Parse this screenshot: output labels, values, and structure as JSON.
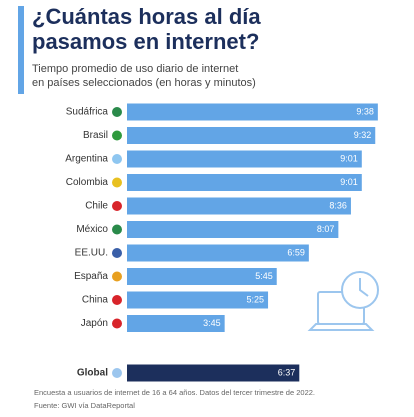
{
  "chart_data": {
    "type": "bar",
    "title": [
      "¿Cuántas horas al día",
      "pasamos en internet?"
    ],
    "subtitle": [
      "Tiempo promedio de uso diario de internet",
      "en países seleccionados (en horas y minutos)"
    ],
    "categories": [
      "Sudáfrica",
      "Brasil",
      "Argentina",
      "Colombia",
      "Chile",
      "México",
      "EE.UU.",
      "España",
      "China",
      "Japón"
    ],
    "values": [
      578,
      572,
      541,
      541,
      516,
      487,
      419,
      345,
      325,
      225
    ],
    "value_labels": [
      "9:38",
      "9:32",
      "9:01",
      "9:01",
      "8:36",
      "8:07",
      "6:59",
      "5:45",
      "5:25",
      "3:45"
    ],
    "color": "#62a5e6",
    "highlight": {
      "category": "Global",
      "value": 397,
      "value_label": "6:37",
      "color": "#1c2f5c"
    },
    "notes": [
      "Encuesta a usuarios de internet de 16 a 64 años. Datos del tercer trimestre de 2022.",
      "Fuente: GWI vía DataReportal"
    ]
  }
}
